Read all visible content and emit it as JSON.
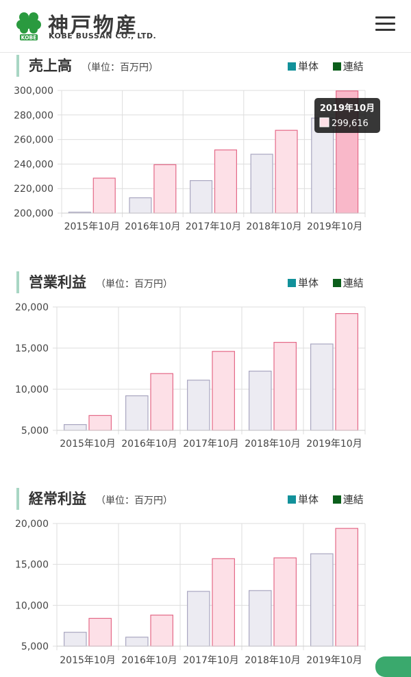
{
  "header": {
    "brand_name": "神戸物産",
    "brand_sub": "KOBE BUSSAN CO., LTD.",
    "logo_text": "KOBE"
  },
  "colors": {
    "tanntai_fill": "#ecebf2",
    "tanntai_stroke": "#a9a6c0",
    "renketsu_fill": "#fde0e7",
    "renketsu_stroke": "#e46887",
    "highlight_fill": "#f9b8c9",
    "legend_tanntai": "#12919a",
    "legend_renketsu": "#0b5e1b",
    "grid": "#dddddd",
    "title_bar": "#a8d6c4"
  },
  "sections": [
    {
      "title": "売上高",
      "unit": "（単位：百万円）",
      "legend": [
        "単体",
        "連結"
      ]
    },
    {
      "title": "営業利益",
      "unit": "（単位：百万円）",
      "legend": [
        "単体",
        "連結"
      ]
    },
    {
      "title": "経常利益",
      "unit": "（単位：百万円）",
      "legend": [
        "単体",
        "連結"
      ]
    }
  ],
  "chart_data": [
    {
      "type": "bar",
      "title": "売上高",
      "categories": [
        "2015年10月",
        "2016年10月",
        "2017年10月",
        "2018年10月",
        "2019年10月"
      ],
      "series": [
        {
          "name": "単体",
          "values": [
            200800,
            212500,
            226500,
            248000,
            277500
          ]
        },
        {
          "name": "連結",
          "values": [
            228500,
            239500,
            251500,
            267500,
            299616
          ]
        }
      ],
      "ylim": [
        200000,
        300000
      ],
      "yticks": [
        "200,000",
        "220,000",
        "240,000",
        "260,000",
        "280,000",
        "300,000"
      ],
      "ytick_values": [
        200000,
        220000,
        240000,
        260000,
        280000,
        300000
      ],
      "grid": true,
      "legend_position": "top-right",
      "tooltip": {
        "title": "2019年10月",
        "value": "299,616"
      }
    },
    {
      "type": "bar",
      "title": "営業利益",
      "categories": [
        "2015年10月",
        "2016年10月",
        "2017年10月",
        "2018年10月",
        "2019年10月"
      ],
      "series": [
        {
          "name": "単体",
          "values": [
            5700,
            9200,
            11100,
            12200,
            15500
          ]
        },
        {
          "name": "連結",
          "values": [
            6800,
            11900,
            14600,
            15700,
            19200
          ]
        }
      ],
      "ylim": [
        5000,
        20000
      ],
      "yticks": [
        "5,000",
        "10,000",
        "15,000",
        "20,000"
      ],
      "ytick_values": [
        5000,
        10000,
        15000,
        20000
      ],
      "grid": true,
      "legend_position": "top-right"
    },
    {
      "type": "bar",
      "title": "経常利益",
      "categories": [
        "2015年10月",
        "2016年10月",
        "2017年10月",
        "2018年10月",
        "2019年10月"
      ],
      "series": [
        {
          "name": "単体",
          "values": [
            6700,
            6100,
            11700,
            11800,
            16300
          ]
        },
        {
          "name": "連結",
          "values": [
            8400,
            8800,
            15700,
            15800,
            19400
          ]
        }
      ],
      "ylim": [
        5000,
        20000
      ],
      "yticks": [
        "5,000",
        "10,000",
        "15,000",
        "20,000"
      ],
      "ytick_values": [
        5000,
        10000,
        15000,
        20000
      ],
      "grid": true,
      "legend_position": "top-right"
    }
  ]
}
